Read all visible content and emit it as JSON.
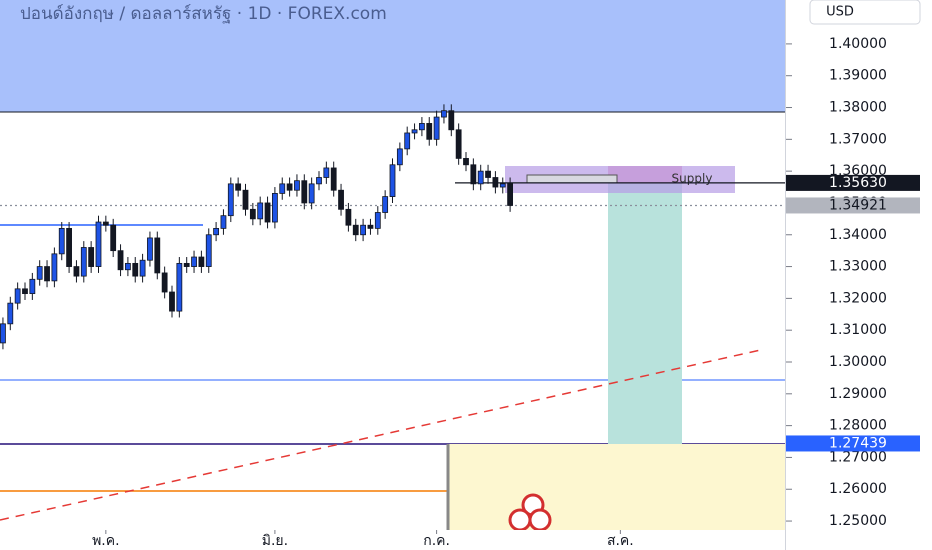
{
  "chart_data": {
    "type": "candlestick",
    "title": "ปอนด์อังกฤษ / ดอลลาร์สหรัฐ · 1D · FOREX.com",
    "currency": "USD",
    "up_color": "#1e53e5",
    "down_color": "#131722",
    "x": [
      0,
      1,
      2,
      3,
      4,
      5,
      6,
      7,
      8,
      9,
      10,
      11,
      12,
      13,
      14,
      15,
      16,
      17,
      18,
      19,
      20,
      21,
      22,
      23,
      24,
      25,
      26,
      27,
      28,
      29,
      30,
      31,
      32,
      33,
      34,
      35,
      36,
      37,
      38,
      39,
      40,
      41,
      42,
      43,
      44,
      45,
      46,
      47,
      48,
      49,
      50,
      51,
      52,
      53,
      54,
      55,
      56,
      57,
      58,
      59,
      60,
      61,
      62,
      63,
      64,
      65,
      66,
      67,
      68,
      69
    ],
    "open": [
      1.306,
      1.312,
      1.3185,
      1.323,
      1.3215,
      1.326,
      1.33,
      1.3255,
      1.334,
      1.342,
      1.33,
      1.327,
      1.336,
      1.33,
      1.344,
      1.343,
      1.335,
      1.329,
      1.331,
      1.327,
      1.332,
      1.339,
      1.328,
      1.322,
      1.316,
      1.331,
      1.33,
      1.333,
      1.33,
      1.34,
      1.342,
      1.346,
      1.356,
      1.354,
      1.348,
      1.345,
      1.35,
      1.344,
      1.353,
      1.356,
      1.354,
      1.357,
      1.35,
      1.356,
      1.358,
      1.361,
      1.354,
      1.348,
      1.343,
      1.34,
      1.343,
      1.342,
      1.347,
      1.352,
      1.362,
      1.367,
      1.372,
      1.373,
      1.375,
      1.37,
      1.377,
      1.379,
      1.373,
      1.364,
      1.362,
      1.356,
      1.36,
      1.358,
      1.355,
      1.356
    ],
    "high": [
      1.314,
      1.3205,
      1.325,
      1.325,
      1.328,
      1.332,
      1.332,
      1.336,
      1.344,
      1.344,
      1.332,
      1.338,
      1.338,
      1.346,
      1.346,
      1.345,
      1.337,
      1.333,
      1.333,
      1.334,
      1.341,
      1.341,
      1.33,
      1.324,
      1.333,
      1.333,
      1.335,
      1.335,
      1.342,
      1.344,
      1.348,
      1.358,
      1.358,
      1.356,
      1.35,
      1.352,
      1.352,
      1.355,
      1.358,
      1.358,
      1.359,
      1.359,
      1.358,
      1.36,
      1.363,
      1.363,
      1.356,
      1.35,
      1.345,
      1.345,
      1.345,
      1.349,
      1.354,
      1.364,
      1.369,
      1.374,
      1.375,
      1.377,
      1.377,
      1.379,
      1.381,
      1.381,
      1.375,
      1.366,
      1.364,
      1.362,
      1.362,
      1.36,
      1.358,
      1.358
    ],
    "low": [
      1.304,
      1.31,
      1.3165,
      1.3195,
      1.3195,
      1.324,
      1.3235,
      1.3235,
      1.332,
      1.328,
      1.325,
      1.325,
      1.328,
      1.328,
      1.341,
      1.333,
      1.327,
      1.327,
      1.325,
      1.325,
      1.33,
      1.326,
      1.32,
      1.314,
      1.314,
      1.328,
      1.328,
      1.328,
      1.328,
      1.338,
      1.34,
      1.344,
      1.352,
      1.346,
      1.343,
      1.343,
      1.342,
      1.342,
      1.351,
      1.352,
      1.352,
      1.348,
      1.348,
      1.354,
      1.356,
      1.352,
      1.346,
      1.341,
      1.338,
      1.338,
      1.34,
      1.34,
      1.345,
      1.35,
      1.36,
      1.365,
      1.37,
      1.371,
      1.368,
      1.368,
      1.375,
      1.371,
      1.362,
      1.36,
      1.354,
      1.354,
      1.356,
      1.353,
      1.353,
      1.3472
    ],
    "close": [
      1.312,
      1.3185,
      1.323,
      1.3215,
      1.326,
      1.33,
      1.3255,
      1.334,
      1.342,
      1.33,
      1.327,
      1.336,
      1.33,
      1.344,
      1.343,
      1.335,
      1.329,
      1.331,
      1.327,
      1.332,
      1.339,
      1.328,
      1.322,
      1.316,
      1.331,
      1.33,
      1.333,
      1.33,
      1.34,
      1.342,
      1.346,
      1.356,
      1.354,
      1.348,
      1.345,
      1.35,
      1.344,
      1.353,
      1.356,
      1.354,
      1.357,
      1.35,
      1.356,
      1.358,
      1.361,
      1.354,
      1.348,
      1.343,
      1.34,
      1.343,
      1.342,
      1.347,
      1.352,
      1.362,
      1.367,
      1.372,
      1.373,
      1.375,
      1.37,
      1.377,
      1.379,
      1.373,
      1.364,
      1.362,
      1.356,
      1.36,
      1.358,
      1.355,
      1.356,
      1.3492
    ],
    "xlim": [
      -0.4,
      106.4
    ],
    "xticks": [
      {
        "value": 14,
        "label": "พ.ค."
      },
      {
        "value": 37,
        "label": "มิ.ย."
      },
      {
        "value": 59,
        "label": "ก.ค."
      },
      {
        "value": 84,
        "label": "ส.ค."
      }
    ],
    "ylim": [
      1.2409,
      1.4138
    ],
    "yticks": [
      {
        "value": 1.25,
        "label": "1.25000"
      },
      {
        "value": 1.26,
        "label": "1.26000"
      },
      {
        "value": 1.27,
        "label": "1.27000"
      },
      {
        "value": 1.28,
        "label": "1.28000"
      },
      {
        "value": 1.29,
        "label": "1.29000"
      },
      {
        "value": 1.3,
        "label": "1.30000"
      },
      {
        "value": 1.31,
        "label": "1.31000"
      },
      {
        "value": 1.32,
        "label": "1.32000"
      },
      {
        "value": 1.33,
        "label": "1.33000"
      },
      {
        "value": 1.34,
        "label": "1.34000"
      },
      {
        "value": 1.35,
        "label": "1.35000"
      },
      {
        "value": 1.36,
        "label": "1.36000"
      },
      {
        "value": 1.37,
        "label": "1.37000"
      },
      {
        "value": 1.38,
        "label": "1.38000"
      },
      {
        "value": 1.39,
        "label": "1.39000"
      },
      {
        "value": 1.4,
        "label": "1.40000"
      }
    ],
    "price_labels": [
      {
        "value": 1.3563,
        "label": "1.35630"
      },
      {
        "value": 1.34921,
        "label": "1.34921"
      },
      {
        "value": 1.27439,
        "label": "1.27439"
      }
    ],
    "supply_label": "Supply"
  }
}
